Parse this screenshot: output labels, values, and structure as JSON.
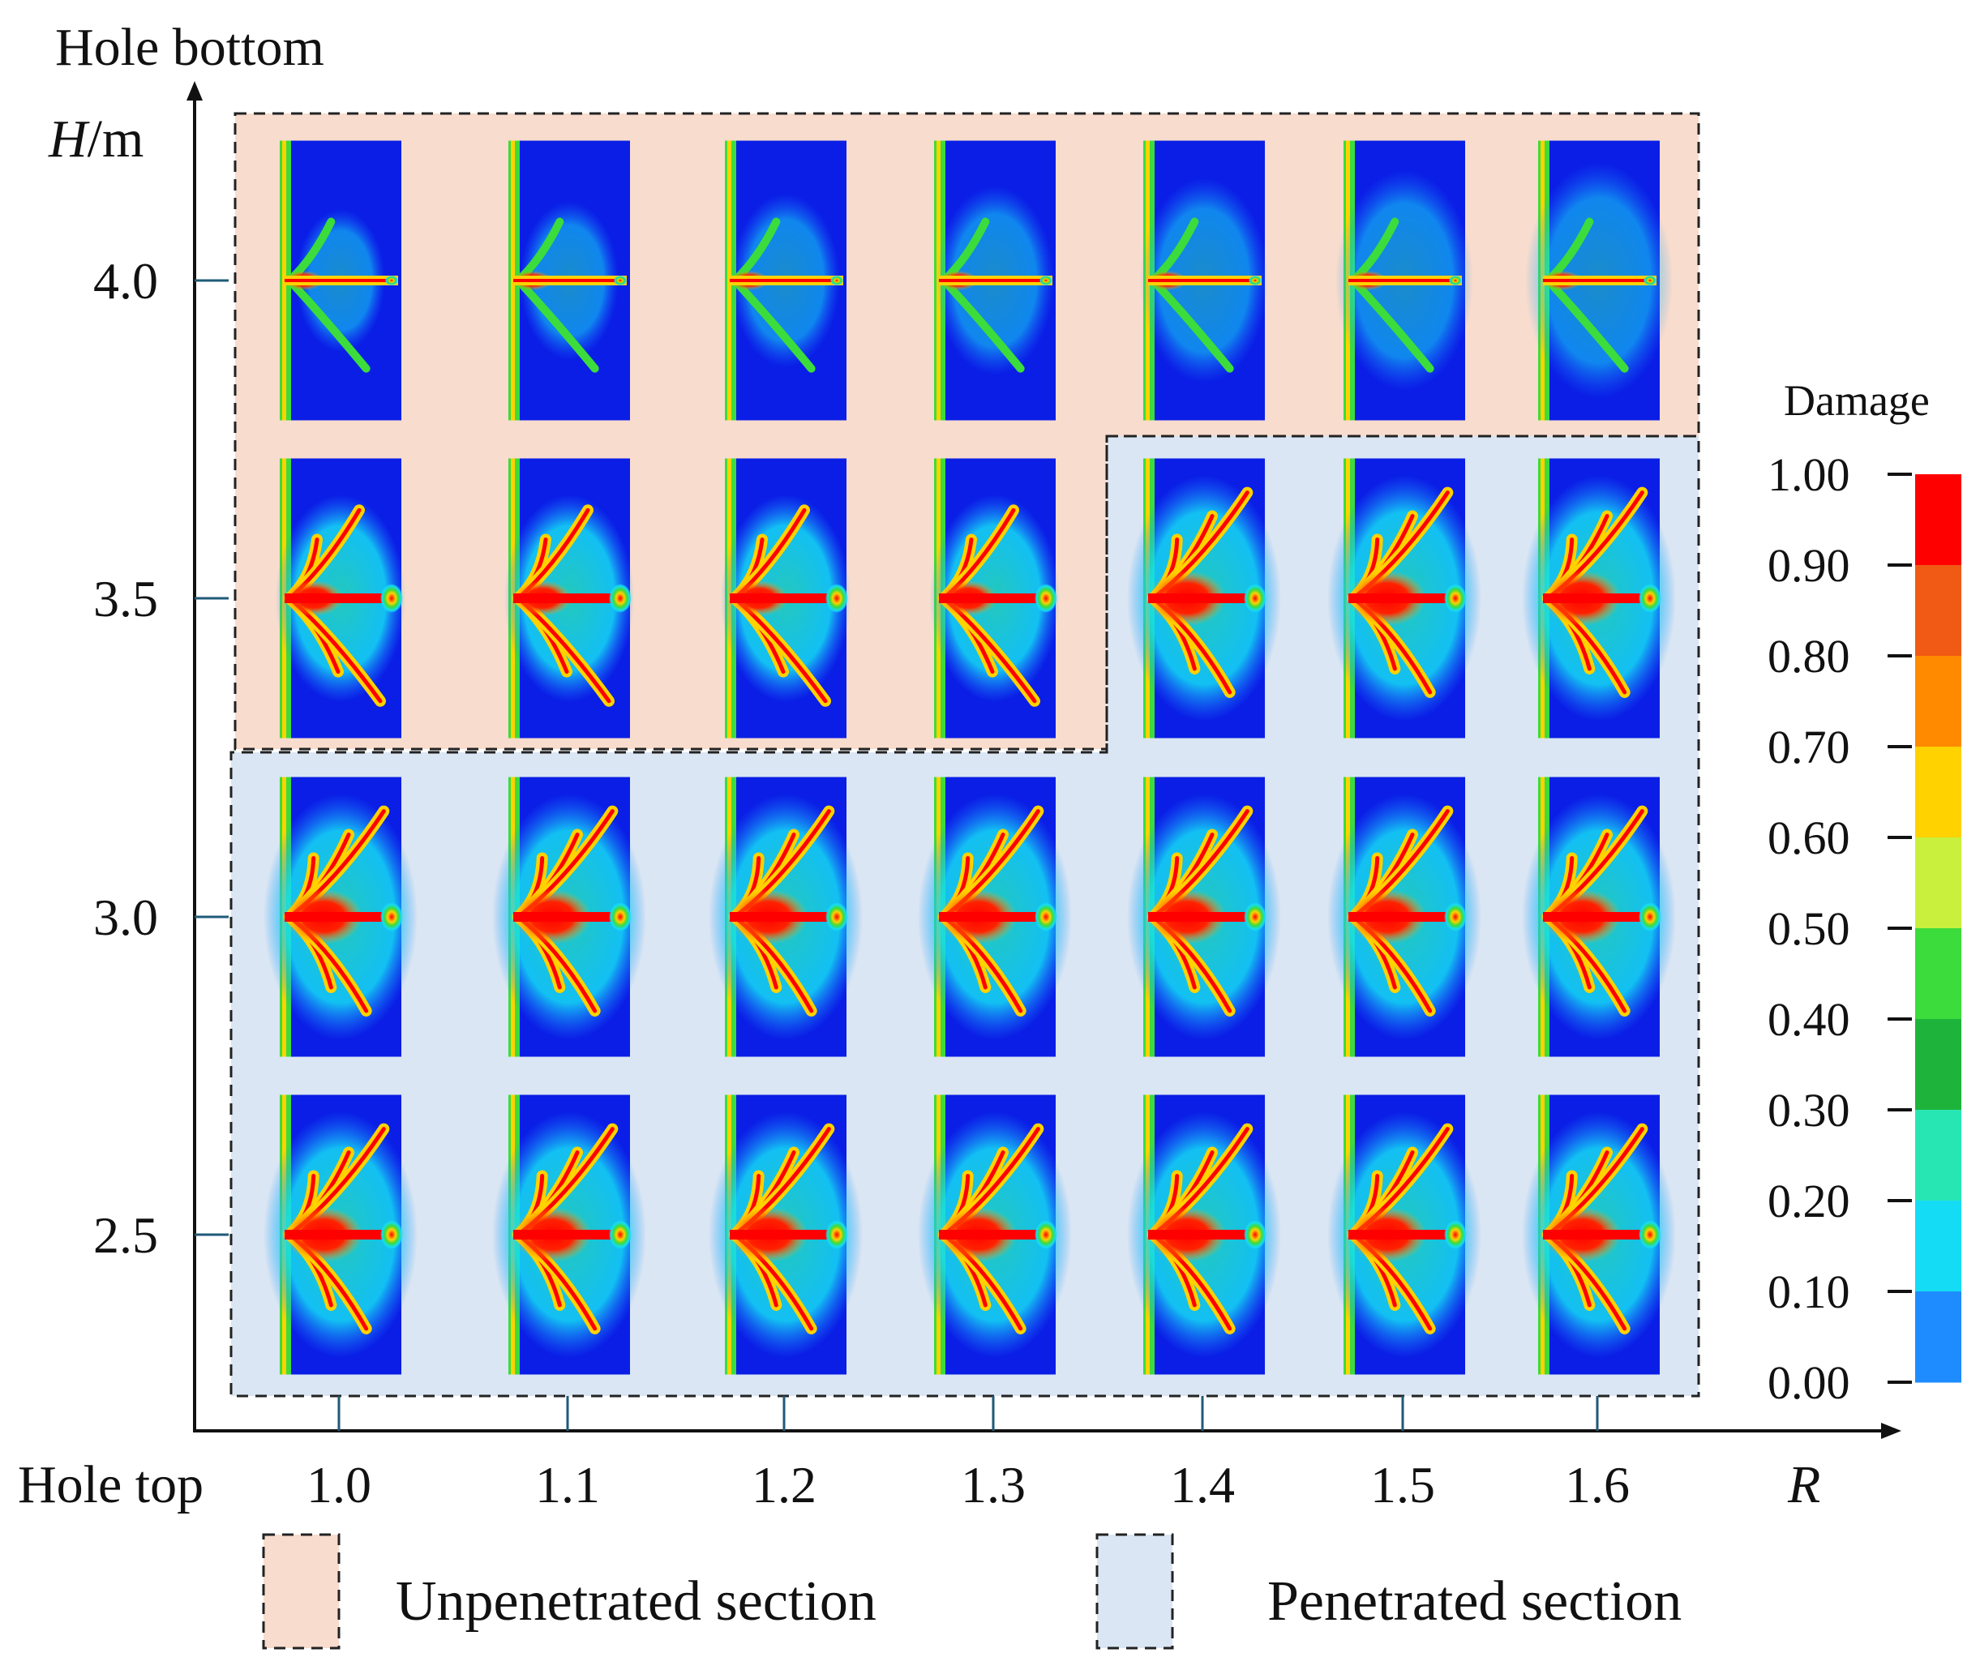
{
  "chart_data": {
    "type": "heatmap",
    "title": "",
    "y_axis_top_label": "Hole bottom",
    "ylabel_italic": "H",
    "ylabel_unit": "/m",
    "x_axis_origin_label": "Hole top",
    "xlabel": "R",
    "x_ticks": [
      "1.0",
      "1.1",
      "1.2",
      "1.3",
      "1.4",
      "1.5",
      "1.6"
    ],
    "y_ticks": [
      "4.0",
      "3.5",
      "3.0",
      "2.5"
    ],
    "colorbar": {
      "title": "Damage",
      "ticks": [
        "1.00",
        "0.90",
        "0.80",
        "0.70",
        "0.60",
        "0.50",
        "0.40",
        "0.30",
        "0.20",
        "0.10",
        "0.00"
      ],
      "colors": [
        "#ff0000",
        "#f05a14",
        "#ff8a00",
        "#ffd200",
        "#c8f03c",
        "#3cdc3c",
        "#1eb43c",
        "#28e6b4",
        "#14dcf5",
        "#1e8cff",
        "#0a1ee6"
      ]
    },
    "legend": [
      {
        "label": "Unpenetrated section",
        "color": "#f8dccd"
      },
      {
        "label": "Penetrated section",
        "color": "#dae6f3"
      }
    ],
    "penetrated_from_column_index_by_row": [
      7,
      4,
      0,
      0
    ]
  },
  "colors": {
    "low_damage": "#0a1ee6",
    "high_damage": "#ff0000",
    "unpenetrated_bg": "#f8dccd",
    "penetrated_bg": "#dae6f3"
  }
}
